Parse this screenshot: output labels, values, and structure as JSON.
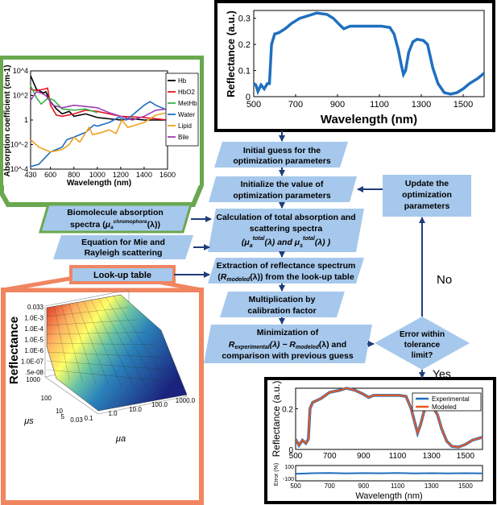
{
  "top_chart": {
    "ylabel": "Reflectance (a.u.)",
    "xlabel": "Wavelength (nm)",
    "xticks": [
      "500",
      "700",
      "900",
      "1100",
      "1300",
      "1500"
    ],
    "yticks": [
      "0",
      "0.1",
      "0.2",
      "0.3"
    ],
    "line_color": "#1f6fbf"
  },
  "abs_chart": {
    "ylabel": "Absorption coefficient (cm-1)",
    "xlabel": "Wavelength (nm)",
    "xticks": [
      "430",
      "600",
      "800",
      "1000",
      "1200",
      "1400",
      "1600"
    ],
    "yticks": [
      "10^4",
      "10^2",
      "1",
      "10^-2",
      "10^-4"
    ],
    "legend": [
      {
        "label": "Hb",
        "color": "#000000"
      },
      {
        "label": "HbO2",
        "color": "#e8141e"
      },
      {
        "label": "MetHb",
        "color": "#39b54a"
      },
      {
        "label": "Water",
        "color": "#1f6fbf"
      },
      {
        "label": "Lipid",
        "color": "#f0a020"
      },
      {
        "label": "Bile",
        "color": "#a23db5"
      }
    ]
  },
  "lut_chart": {
    "zlabel": "Reflectance",
    "zticks": [
      "0.033",
      "1.0E-3",
      "1.0E-4",
      "1.0E-5",
      "1.0E-6",
      "1.0E-07",
      ".5e-08"
    ],
    "mus_label": "μs",
    "mus_ticks": [
      "1000",
      "100",
      "10",
      "5"
    ],
    "mua_label": "μa",
    "mua_ticks": [
      "0.03",
      "0.1",
      "1.0",
      "10.0",
      "100.0",
      "1000.0"
    ]
  },
  "bottom_chart": {
    "ylabel": "Reflectance (a.u.)",
    "yticks": [
      "0",
      "0.2"
    ],
    "err_label": "Error (%)",
    "err_ticks": [
      "100",
      "-100"
    ],
    "xlabel": "Wavelength (nm)",
    "xticks": [
      "500",
      "700",
      "900",
      "1100",
      "1300",
      "1500"
    ],
    "legend": [
      {
        "label": "Experimental",
        "color": "#1f6fbf"
      },
      {
        "label": "Modeled",
        "color": "#e8581e"
      }
    ]
  },
  "flow": {
    "box1": [
      "Initial guess for the",
      "optimization parameters"
    ],
    "box2": [
      "Initialize the value of",
      "optimization parameters"
    ],
    "box3": [
      "Calculation of total absorption and",
      "scattering spectra"
    ],
    "box3_formula": "(μa^total(λ) and μs^total(λ) )",
    "box4": [
      "Extraction of reflectance spectrum"
    ],
    "box4_formula": "(R_modeled(λ)) from the look-up table",
    "box5": [
      "Multiplication by",
      "calibration factor"
    ],
    "box6": [
      "Minimization of"
    ],
    "box6_formula": "R_experimental(λ) − R_modeled(λ) and",
    "box6_line3": "comparison with previous guess",
    "decision": [
      "Error within",
      "tolerance",
      "limit?"
    ],
    "update": [
      "Update the",
      "optimization",
      "parameters"
    ],
    "input1": [
      "Biomolecule absorption"
    ],
    "input1_formula": "spectra (μa^chromophore(λ))",
    "input2": [
      "Equation for Mie and",
      "Rayleigh scattering"
    ],
    "input3": "Look-up table",
    "no_label": "No",
    "yes_label": "Yes"
  },
  "colors": {
    "box_fill": "#a6c8ec",
    "arrow": "#1f3d7a",
    "green_frame": "#6aa84f",
    "orange_frame": "#f08560"
  }
}
